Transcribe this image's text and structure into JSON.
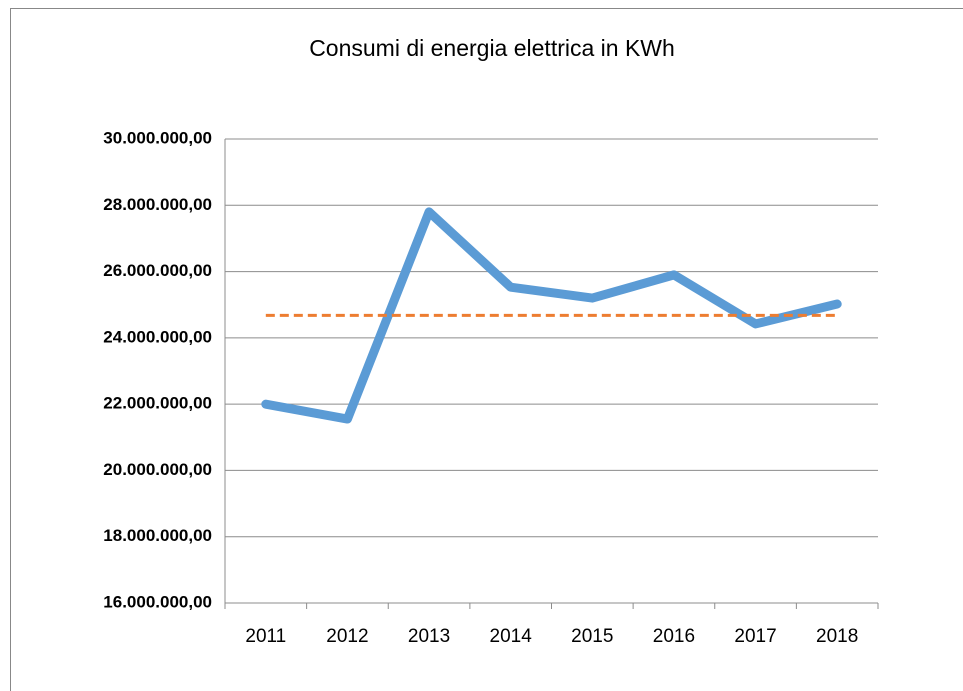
{
  "chart_data": {
    "type": "line",
    "title": "Consumi di energia elettrica in KWh",
    "categories": [
      "2011",
      "2012",
      "2013",
      "2014",
      "2015",
      "2016",
      "2017",
      "2018"
    ],
    "series": [
      {
        "color": "#5b9bd5",
        "values": [
          22000000,
          21550000,
          27800000,
          25530000,
          25200000,
          25900000,
          24420000,
          25020000
        ]
      },
      {
        "color": "#ed7d31",
        "dashed": true,
        "values": [
          24680000,
          24680000,
          24680000,
          24680000,
          24680000,
          24680000,
          24680000,
          24680000
        ]
      }
    ],
    "ylim": [
      16000000,
      30000000
    ],
    "yticks": [
      {
        "value": 16000000,
        "label": "16.000.000,00"
      },
      {
        "value": 18000000,
        "label": "18.000.000,00"
      },
      {
        "value": 20000000,
        "label": "20.000.000,00"
      },
      {
        "value": 22000000,
        "label": "22.000.000,00"
      },
      {
        "value": 24000000,
        "label": "24.000.000,00"
      },
      {
        "value": 26000000,
        "label": "26.000.000,00"
      },
      {
        "value": 28000000,
        "label": "28.000.000,00"
      },
      {
        "value": 30000000,
        "label": "30.000.000,00"
      }
    ],
    "grid": true
  }
}
